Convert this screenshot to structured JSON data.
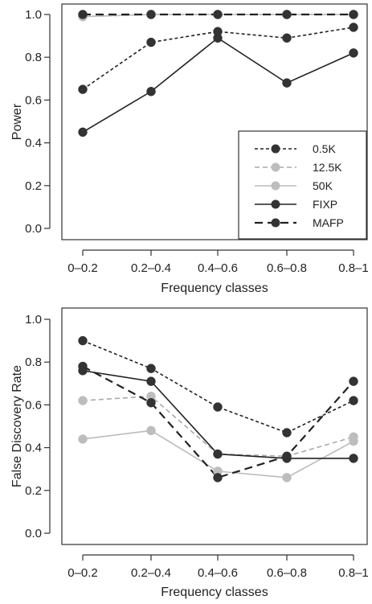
{
  "chart_data": [
    {
      "type": "line",
      "ylabel": "Power",
      "xlabel": "Frequency classes",
      "categories": [
        "0–0.2",
        "0.2–0.4",
        "0.4–0.6",
        "0.6–0.8",
        "0.8–1"
      ],
      "ylim": [
        0,
        1
      ],
      "yticks": [
        "0.0",
        "0.2",
        "0.4",
        "0.6",
        "0.8",
        "1.0"
      ],
      "legend_position": "bottom-right",
      "series": [
        {
          "name": "0.5K",
          "values": [
            0.65,
            0.87,
            0.92,
            0.89,
            0.94
          ],
          "color": "#222222",
          "style": "dotted",
          "marker": "dark"
        },
        {
          "name": "12.5K",
          "values": [
            0.99,
            1.0,
            1.0,
            1.0,
            1.0
          ],
          "color": "#aaaaaa",
          "style": "dashed",
          "marker": "light"
        },
        {
          "name": "50K",
          "values": [
            0.99,
            1.0,
            1.0,
            1.0,
            1.0
          ],
          "color": "#bbbbbb",
          "style": "solid",
          "marker": "light"
        },
        {
          "name": "FIXP",
          "values": [
            0.45,
            0.64,
            0.89,
            0.68,
            0.82
          ],
          "color": "#222222",
          "style": "solid",
          "marker": "dark"
        },
        {
          "name": "MAFP",
          "values": [
            1.0,
            1.0,
            1.0,
            1.0,
            1.0
          ],
          "color": "#222222",
          "style": "longdash",
          "marker": "dark"
        }
      ]
    },
    {
      "type": "line",
      "ylabel": "False Discovery Rate",
      "xlabel": "Frequency classes",
      "categories": [
        "0–0.2",
        "0.2–0.4",
        "0.4–0.6",
        "0.6–0.8",
        "0.8–1"
      ],
      "ylim": [
        0,
        1
      ],
      "yticks": [
        "0.0",
        "0.2",
        "0.4",
        "0.6",
        "0.8",
        "1.0"
      ],
      "series": [
        {
          "name": "0.5K",
          "values": [
            0.9,
            0.77,
            0.59,
            0.47,
            0.62
          ],
          "color": "#222222",
          "style": "dotted",
          "marker": "dark"
        },
        {
          "name": "12.5K",
          "values": [
            0.62,
            0.64,
            0.37,
            0.36,
            0.45
          ],
          "color": "#aaaaaa",
          "style": "dashed",
          "marker": "light"
        },
        {
          "name": "50K",
          "values": [
            0.44,
            0.48,
            0.29,
            0.26,
            0.43
          ],
          "color": "#bbbbbb",
          "style": "solid",
          "marker": "light"
        },
        {
          "name": "FIXP",
          "values": [
            0.76,
            0.71,
            0.37,
            0.35,
            0.35
          ],
          "color": "#222222",
          "style": "solid",
          "marker": "dark"
        },
        {
          "name": "MAFP",
          "values": [
            0.78,
            0.61,
            0.26,
            0.36,
            0.71
          ],
          "color": "#222222",
          "style": "longdash",
          "marker": "dark"
        }
      ]
    }
  ]
}
